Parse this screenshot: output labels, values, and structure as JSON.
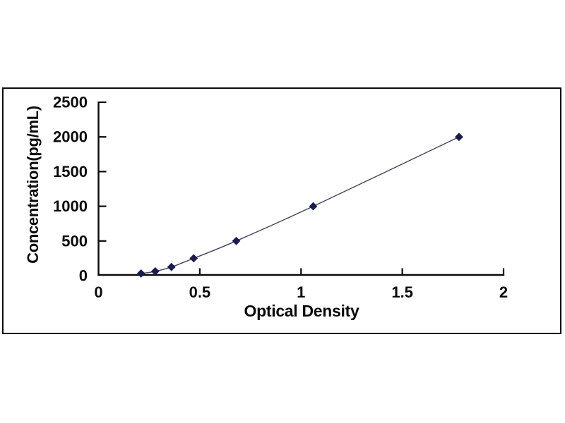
{
  "page": {
    "background": "#ffffff"
  },
  "chart_data": {
    "type": "line",
    "title": "",
    "xlabel": "Optical Density",
    "ylabel": "Concentration(pg/mL)",
    "x": [
      0.21,
      0.28,
      0.36,
      0.47,
      0.68,
      1.06,
      1.78
    ],
    "y": [
      31.2,
      62.5,
      125,
      250,
      500,
      1000,
      2000
    ],
    "points": [
      {
        "optical_density": 0.21,
        "concentration_pg_ml": 31.2
      },
      {
        "optical_density": 0.28,
        "concentration_pg_ml": 62.5
      },
      {
        "optical_density": 0.36,
        "concentration_pg_ml": 125
      },
      {
        "optical_density": 0.47,
        "concentration_pg_ml": 250
      },
      {
        "optical_density": 0.68,
        "concentration_pg_ml": 500
      },
      {
        "optical_density": 1.06,
        "concentration_pg_ml": 1000
      },
      {
        "optical_density": 1.78,
        "concentration_pg_ml": 2000
      }
    ],
    "xlim": [
      0,
      2
    ],
    "ylim": [
      0,
      2500
    ],
    "xticks": [
      0,
      0.5,
      1,
      1.5,
      2
    ],
    "xtick_labels": [
      "0",
      "0.5",
      "1",
      "1.5",
      "2"
    ],
    "yticks": [
      0,
      500,
      1000,
      1500,
      2000,
      2500
    ],
    "ytick_labels": [
      "0",
      "500",
      "1000",
      "1500",
      "2000",
      "2500"
    ],
    "grid": false,
    "legend": null,
    "marker": "diamond",
    "colors": {
      "marker": "#1b1b4d",
      "line": "#42425e",
      "axis": "#0a0a0a",
      "text": "#0a0a0a",
      "frame_border": "#0d0d0d",
      "plot_background": "#ffffff"
    }
  }
}
